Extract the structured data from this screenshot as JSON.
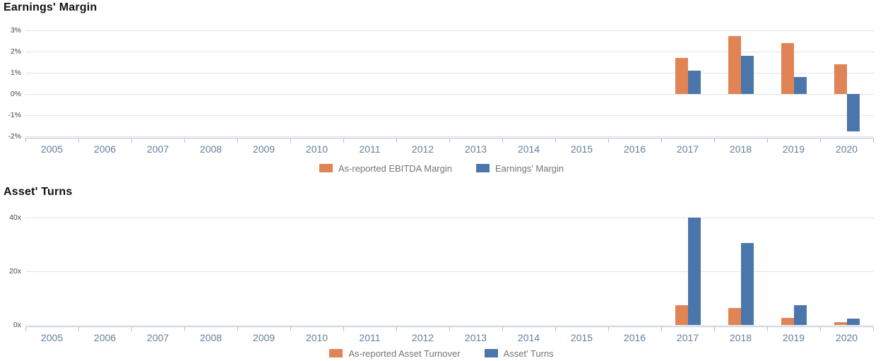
{
  "colors": {
    "orange": "#E08455",
    "blue": "#4A76AC",
    "gridline": "#E2E2E2",
    "axis": "#AEC3DB",
    "year_label": "#61809F",
    "y_label": "#474747",
    "legend_text": "#757575",
    "title": "#111111"
  },
  "chart_data": [
    {
      "type": "bar",
      "title": "Earnings' Margin",
      "xlabel": "",
      "ylabel": "",
      "grid": true,
      "legend_position": "bottom",
      "ylim": [
        -2,
        3
      ],
      "yticks": [
        {
          "value": 3,
          "label": "3%"
        },
        {
          "value": 2,
          "label": "2%"
        },
        {
          "value": 1,
          "label": "1%"
        },
        {
          "value": 0,
          "label": "0%"
        },
        {
          "value": -1,
          "label": "-1%"
        },
        {
          "value": -2,
          "label": "-2%"
        }
      ],
      "categories": [
        "2005",
        "2006",
        "2007",
        "2008",
        "2009",
        "2010",
        "2011",
        "2012",
        "2013",
        "2014",
        "2015",
        "2016",
        "2017",
        "2018",
        "2019",
        "2020"
      ],
      "series": [
        {
          "name": "As-reported EBITDA Margin",
          "color": "#E08455",
          "values": [
            null,
            null,
            null,
            null,
            null,
            null,
            null,
            null,
            null,
            null,
            null,
            null,
            1.7,
            2.75,
            2.4,
            1.4
          ]
        },
        {
          "name": "Earnings' Margin",
          "color": "#4A76AC",
          "values": [
            null,
            null,
            null,
            null,
            null,
            null,
            null,
            null,
            null,
            null,
            null,
            null,
            1.1,
            1.8,
            0.8,
            -1.75
          ]
        }
      ]
    },
    {
      "type": "bar",
      "title": "Asset' Turns",
      "xlabel": "",
      "ylabel": "",
      "grid": true,
      "legend_position": "bottom",
      "ylim": [
        0,
        40
      ],
      "yticks": [
        {
          "value": 40,
          "label": "40x"
        },
        {
          "value": 20,
          "label": "20x"
        },
        {
          "value": 0,
          "label": "0x"
        }
      ],
      "categories": [
        "2005",
        "2006",
        "2007",
        "2008",
        "2009",
        "2010",
        "2011",
        "2012",
        "2013",
        "2014",
        "2015",
        "2016",
        "2017",
        "2018",
        "2019",
        "2020"
      ],
      "series": [
        {
          "name": "As-reported Asset Turnover",
          "color": "#E08455",
          "values": [
            null,
            null,
            null,
            null,
            null,
            null,
            null,
            null,
            null,
            null,
            null,
            null,
            7.5,
            6.3,
            2.6,
            1.0
          ]
        },
        {
          "name": "Asset' Turns",
          "color": "#4A76AC",
          "values": [
            null,
            null,
            null,
            null,
            null,
            null,
            null,
            null,
            null,
            null,
            null,
            null,
            40,
            30.5,
            7.3,
            2.3
          ]
        }
      ]
    }
  ]
}
